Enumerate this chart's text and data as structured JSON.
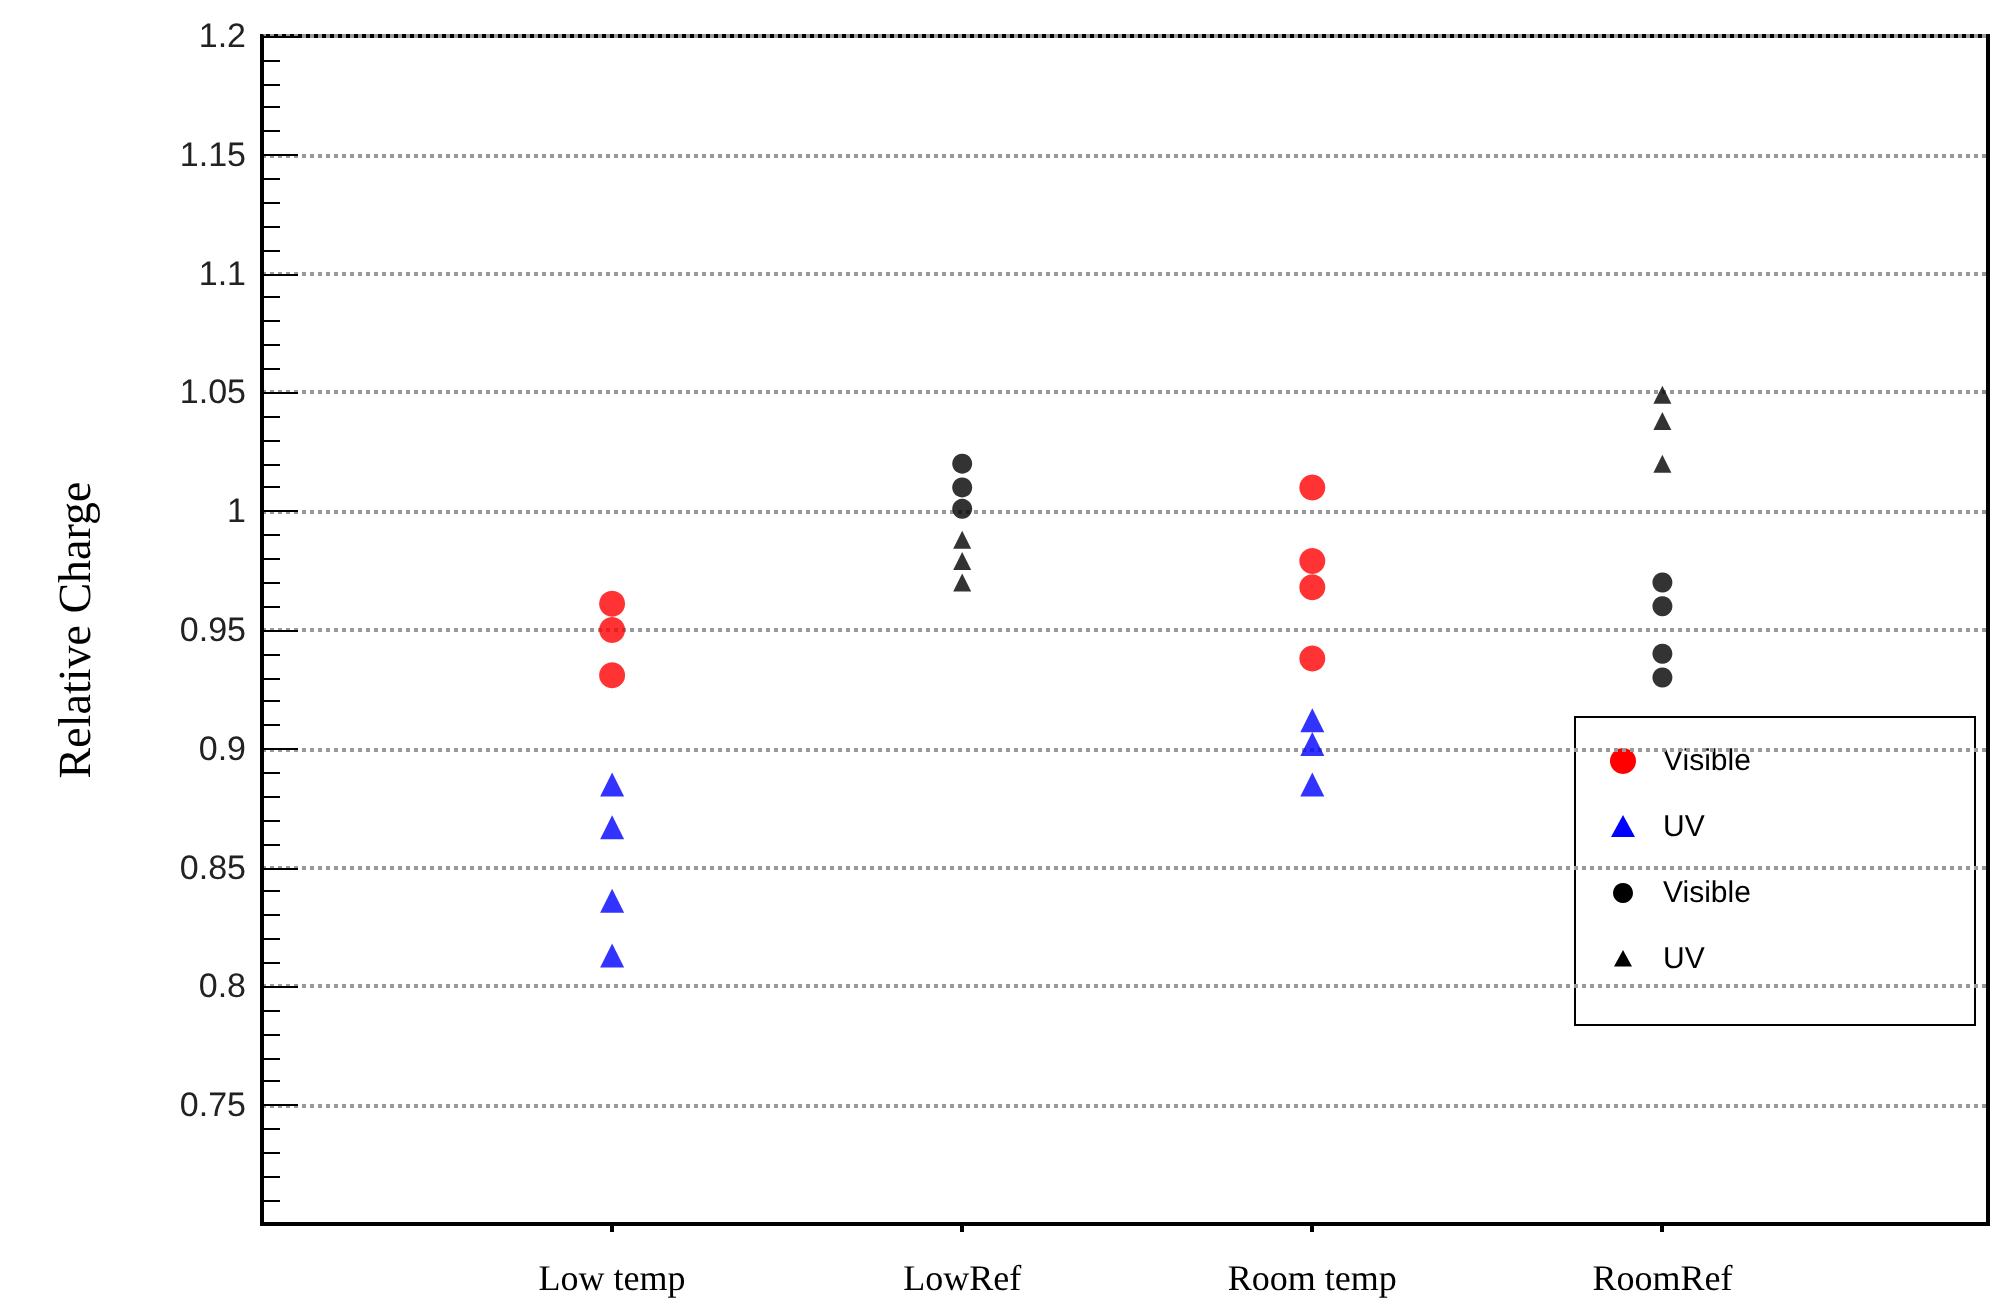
{
  "chart_data": {
    "type": "scatter",
    "ylabel": "Relative Charge",
    "categories": [
      "Low temp",
      "LowRef",
      "Room temp",
      "RoomRef"
    ],
    "ylim": [
      0.7,
      1.2
    ],
    "yticks": [
      0.75,
      0.8,
      0.85,
      0.9,
      0.95,
      1,
      1.05,
      1.1,
      1.15,
      1.2
    ],
    "grid": "y",
    "legend": "bottom right",
    "series": [
      {
        "name": "Visible",
        "color": "#ff0000",
        "marker": "circle",
        "x": [
          "Low temp",
          "Low temp",
          "Low temp",
          "Room temp",
          "Room temp",
          "Room temp",
          "Room temp"
        ],
        "values": [
          0.961,
          0.95,
          0.931,
          1.01,
          0.979,
          0.968,
          0.938
        ]
      },
      {
        "name": "UV",
        "color": "#0000ff",
        "marker": "triangle",
        "x": [
          "Low temp",
          "Low temp",
          "Low temp",
          "Low temp",
          "Room temp",
          "Room temp",
          "Room temp"
        ],
        "values": [
          0.885,
          0.867,
          0.836,
          0.813,
          0.912,
          0.902,
          0.885
        ]
      },
      {
        "name": "Visible",
        "color": "#000000",
        "marker": "circle",
        "x": [
          "LowRef",
          "LowRef",
          "LowRef",
          "RoomRef",
          "RoomRef",
          "RoomRef",
          "RoomRef"
        ],
        "values": [
          1.02,
          1.01,
          1.001,
          0.97,
          0.96,
          0.94,
          0.93
        ]
      },
      {
        "name": "UV",
        "color": "#000000",
        "marker": "triangle",
        "x": [
          "LowRef",
          "LowRef",
          "LowRef",
          "RoomRef",
          "RoomRef",
          "RoomRef"
        ],
        "values": [
          0.988,
          0.979,
          0.97,
          1.049,
          1.038,
          1.02
        ]
      }
    ]
  }
}
